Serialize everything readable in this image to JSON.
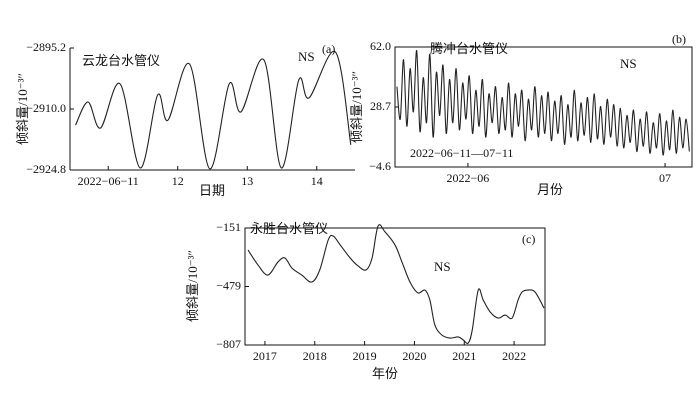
{
  "chart_data": [
    {
      "type": "line",
      "title": "云龙台水管仪",
      "annotation": "NS",
      "panel_label": "(a)",
      "ylabel": "倾斜量/10⁻³″",
      "xlabel": "日期",
      "frame": "axes",
      "color": "#222222",
      "x": [
        10.53,
        10.71,
        10.89,
        11.17,
        11.46,
        11.71,
        11.86,
        12.17,
        12.46,
        12.74,
        12.91,
        13.24,
        13.49,
        13.74,
        13.89,
        14.27,
        14.49
      ],
      "values": [
        -2913.9,
        -2908.3,
        -2914.6,
        -2903.9,
        -2924.3,
        -2906.6,
        -2912.7,
        -2899.1,
        -2924.5,
        -2903.9,
        -2910.7,
        -2898.1,
        -2924.3,
        -2903.0,
        -2907.3,
        -2896.2,
        -2918.7
      ],
      "xlim": [
        10.45,
        14.55
      ],
      "ylim": [
        -2924.8,
        -2895.2
      ],
      "xticks": [
        {
          "value": 11,
          "label": "2022−06−11"
        },
        12,
        13,
        14
      ],
      "yticks": [
        {
          "value": -2895.2,
          "label": "−2895.2"
        },
        {
          "value": -2910.0,
          "label": "−2910.0"
        },
        {
          "value": -2924.8,
          "label": "−2924.8"
        }
      ]
    },
    {
      "type": "line",
      "title": "腾冲台水管仪",
      "annotation": "NS",
      "panel_label": "(b)",
      "note": "2022−06−11—07−11",
      "ylabel": "倾斜量/10⁻³″",
      "xlabel": "月份",
      "frame": "box",
      "color": "#222222",
      "x": [
        -10.8,
        -10.3,
        -9.8,
        -9.3,
        -8.8,
        -8.3,
        -7.8,
        -7.3,
        -6.8,
        -6.3,
        -5.8,
        -5.3,
        -4.8,
        -4.3,
        -3.8,
        -3.3,
        -2.8,
        -2.3,
        -1.8,
        -1.3,
        -0.8,
        -0.3,
        0.2,
        0.7,
        1.2,
        1.7,
        2.2,
        2.7,
        3.2,
        3.7,
        4.2,
        4.7,
        5.2,
        5.7,
        6.2,
        6.7,
        7.2,
        7.7,
        8.2,
        8.7,
        9.2,
        9.7,
        10.2,
        10.7,
        11.2,
        11.7,
        12.2,
        12.7,
        13.2,
        13.7,
        14.2,
        14.7,
        15.2,
        15.7,
        16.2,
        16.7,
        17.2,
        17.7,
        18.2,
        18.7,
        19.2,
        19.7,
        20.2,
        20.7,
        21.2,
        21.7,
        22.2,
        22.7,
        23.2,
        23.7,
        24.2,
        24.7,
        25.2,
        25.7,
        26.2,
        26.7,
        27.2,
        27.7,
        28.2,
        28.7,
        29.2,
        29.7,
        30.2,
        30.7,
        31.2,
        31.7,
        32.2,
        32.7,
        33.2,
        33.7
      ],
      "values": [
        40,
        22,
        55,
        18,
        50,
        26,
        60,
        15,
        45,
        20,
        58,
        12,
        48,
        24,
        52,
        14,
        44,
        20,
        50,
        16,
        42,
        22,
        46,
        14,
        38,
        18,
        44,
        12,
        36,
        20,
        40,
        14,
        34,
        16,
        42,
        12,
        36,
        18,
        38,
        10,
        33,
        16,
        40,
        12,
        35,
        14,
        37,
        10,
        32,
        14,
        35,
        8,
        30,
        12,
        38,
        10,
        31,
        13,
        34,
        9,
        36,
        11,
        29,
        8,
        33,
        12,
        30,
        7,
        28,
        6,
        24,
        9,
        27,
        4,
        22,
        7,
        26,
        3,
        20,
        6,
        25,
        2,
        21,
        5,
        27,
        3,
        23,
        6,
        22,
        4
      ],
      "xlim": [
        -11.1,
        34.1
      ],
      "ylim": [
        -4.6,
        62.0
      ],
      "xticks": [
        {
          "value": 0,
          "label": "2022−06"
        },
        {
          "value": 30,
          "label": "07"
        }
      ],
      "yticks": [
        {
          "value": 62.0,
          "label": "62.0"
        },
        28.7,
        {
          "value": -4.6,
          "label": "−4.6"
        }
      ]
    },
    {
      "type": "line",
      "title": "永胜台水管仪",
      "annotation": "NS",
      "panel_label": "(c)",
      "ylabel": "倾斜量/10⁻³″",
      "xlabel": "年份",
      "frame": "box",
      "color": "#222222",
      "x": [
        2016.66,
        2016.86,
        2017.06,
        2017.26,
        2017.4,
        2017.54,
        2017.74,
        2017.94,
        2018.1,
        2018.27,
        2018.37,
        2018.51,
        2018.71,
        2018.87,
        2019.03,
        2019.15,
        2019.27,
        2019.41,
        2019.61,
        2019.75,
        2019.91,
        2020.07,
        2020.21,
        2020.31,
        2020.41,
        2020.55,
        2020.71,
        2020.88,
        2020.98,
        2021.08,
        2021.16,
        2021.28,
        2021.38,
        2021.52,
        2021.68,
        2021.82,
        2021.96,
        2022.08,
        2022.16,
        2022.28,
        2022.42,
        2022.6
      ],
      "values": [
        -274,
        -358,
        -415,
        -342,
        -319,
        -375,
        -415,
        -454,
        -386,
        -218,
        -196,
        -246,
        -319,
        -364,
        -386,
        -319,
        -140,
        -173,
        -246,
        -342,
        -454,
        -515,
        -499,
        -555,
        -695,
        -751,
        -768,
        -762,
        -779,
        -796,
        -723,
        -499,
        -555,
        -622,
        -656,
        -639,
        -656,
        -555,
        -510,
        -499,
        -510,
        -600
      ],
      "xlim": [
        2016.6,
        2022.62
      ],
      "ylim": [
        -807,
        -151
      ],
      "xticks": [
        2017,
        2018,
        2019,
        2020,
        2021,
        2022
      ],
      "yticks": [
        {
          "value": -151,
          "label": "−151"
        },
        {
          "value": -479,
          "label": "−479"
        },
        {
          "value": -807,
          "label": "−807"
        }
      ]
    }
  ]
}
